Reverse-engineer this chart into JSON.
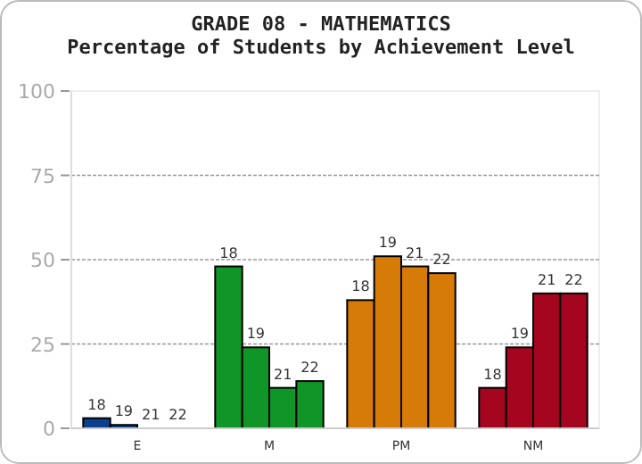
{
  "chart_data": {
    "type": "bar",
    "title": "GRADE 08 - MATHEMATICS",
    "subtitle": "Percentage of Students by Achievement Level",
    "categories": [
      "E",
      "M",
      "PM",
      "NM"
    ],
    "series": [
      {
        "name": "18",
        "colors": [
          "#0d3f8f",
          "#0f9626",
          "#d67b07",
          "#a5061f"
        ],
        "values": [
          3,
          48,
          38,
          12
        ]
      },
      {
        "name": "19",
        "colors": [
          "#0d3f8f",
          "#0f9626",
          "#d67b07",
          "#a5061f"
        ],
        "values": [
          1,
          24,
          51,
          24
        ]
      },
      {
        "name": "21",
        "colors": [
          "#0d3f8f",
          "#0f9626",
          "#d67b07",
          "#a5061f"
        ],
        "values": [
          0,
          12,
          48,
          40
        ]
      },
      {
        "name": "22",
        "colors": [
          "#0d3f8f",
          "#0f9626",
          "#d67b07",
          "#a5061f"
        ],
        "values": [
          0,
          14,
          46,
          40
        ]
      }
    ],
    "ylim": [
      0,
      100
    ],
    "yticks": [
      0,
      25,
      50,
      75,
      100
    ],
    "grid": "y",
    "legend": false
  }
}
